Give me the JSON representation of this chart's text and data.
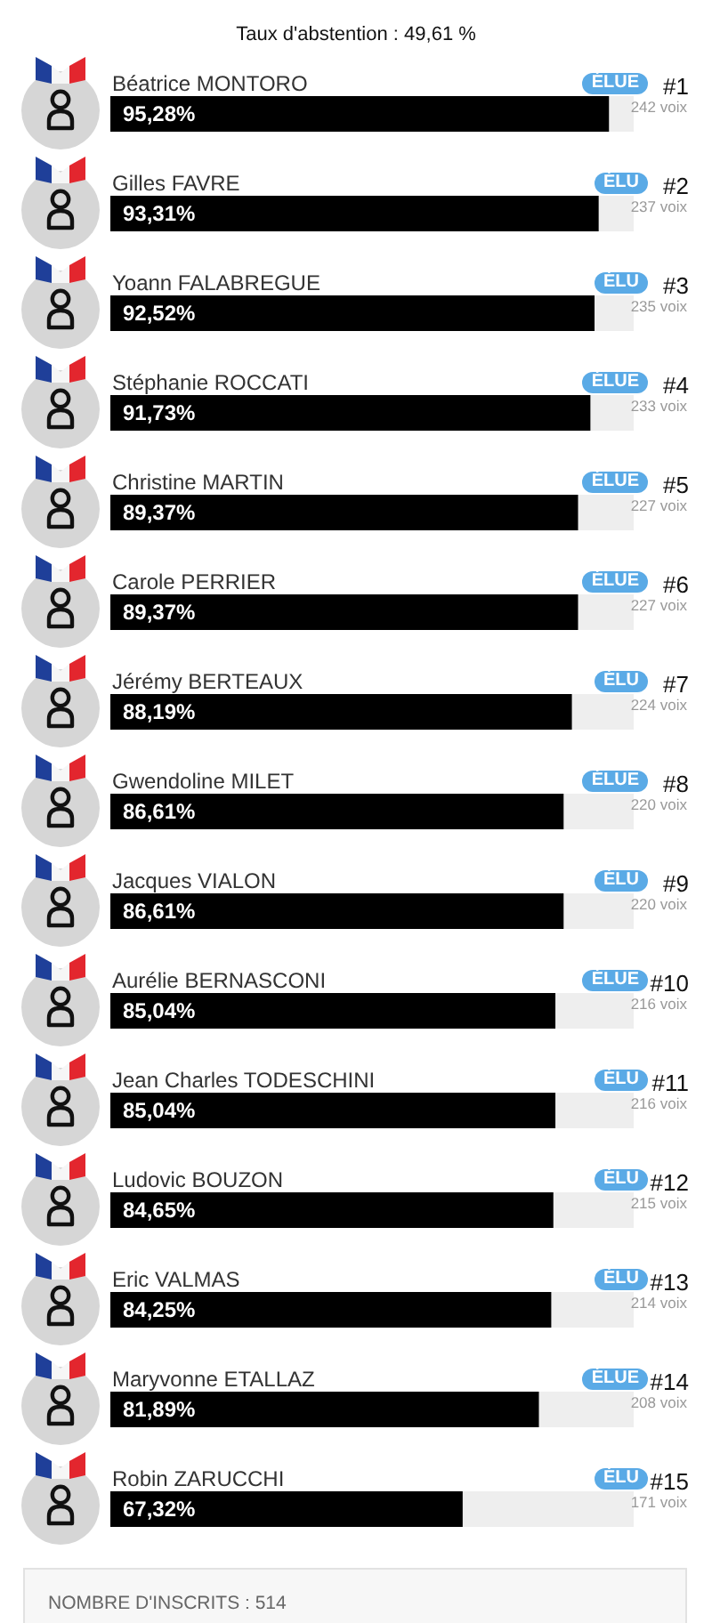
{
  "chart_data": {
    "type": "bar",
    "orientation": "horizontal",
    "title": "Taux d'abstention : 49,61 %",
    "categories": [
      "Béatrice MONTORO",
      "Gilles FAVRE",
      "Yoann FALABREGUE",
      "Stéphanie ROCCATI",
      "Christine MARTIN",
      "Carole PERRIER",
      "Jérémy BERTEAUX",
      "Gwendoline MILET",
      "Jacques VIALON",
      "Aurélie BERNASCONI",
      "Jean Charles TODESCHINI",
      "Ludovic BOUZON",
      "Eric VALMAS",
      "Maryvonne ETALLAZ",
      "Robin ZARUCCHI"
    ],
    "values": [
      95.28,
      93.31,
      92.52,
      91.73,
      89.37,
      89.37,
      88.19,
      86.61,
      86.61,
      85.04,
      85.04,
      84.65,
      84.25,
      81.89,
      67.32
    ],
    "value_labels": [
      "95,28%",
      "93,31%",
      "92,52%",
      "91,73%",
      "89,37%",
      "89,37%",
      "88,19%",
      "86,61%",
      "86,61%",
      "85,04%",
      "85,04%",
      "84,65%",
      "84,25%",
      "81,89%",
      "67,32%"
    ],
    "color": "#000000",
    "xlim": [
      0,
      100
    ],
    "tick_labels": "y",
    "annotations": [
      "ÉLUE",
      "#1",
      "242 voix",
      "ÉLU",
      "#2",
      "237 voix",
      "ÉLU",
      "#3",
      "235 voix",
      "ÉLUE",
      "#4",
      "233 voix",
      "ÉLUE",
      "#5",
      "227 voix",
      "ÉLUE",
      "#6",
      "227 voix",
      "ÉLU",
      "#7",
      "224 voix",
      "ÉLUE",
      "#8",
      "220 voix",
      "ÉLU",
      "#9",
      "220 voix",
      "ÉLUE",
      "#10",
      "216 voix",
      "ÉLU",
      "#11",
      "216 voix",
      "ÉLU",
      "#12",
      "215 voix",
      "ÉLU",
      "#13",
      "214 voix",
      "ÉLUE",
      "#14",
      "208 voix",
      "ÉLU",
      "#15",
      "171 voix",
      "NOMBRE D'INSCRITS : 514"
    ]
  }
}
